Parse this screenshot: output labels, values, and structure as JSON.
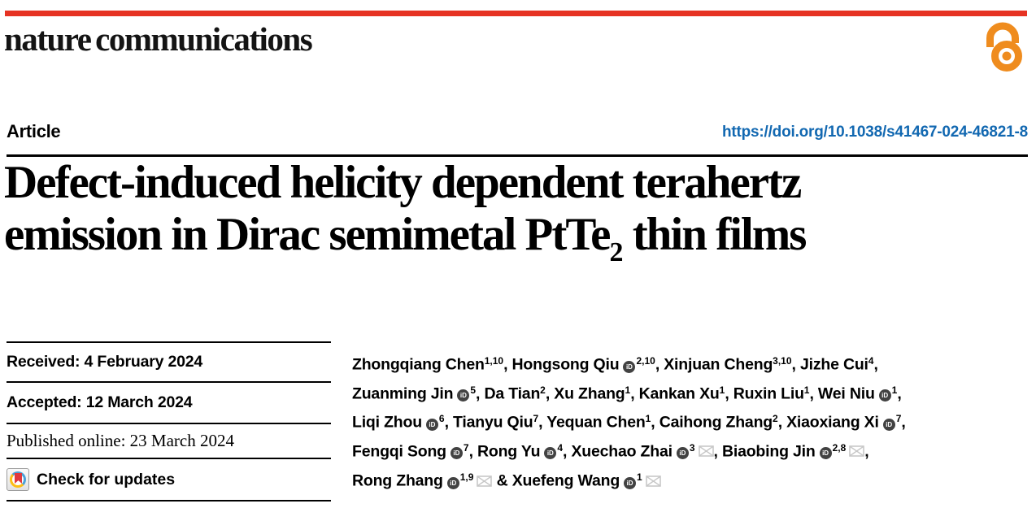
{
  "brand": {
    "wordmark": "nature communications",
    "bar_color": "#e63323",
    "open_access_color": "#ef8c1e"
  },
  "header": {
    "article_label": "Article",
    "doi_link": "https://doi.org/10.1038/s41467-024-46821-8",
    "doi_color": "#1268b1"
  },
  "title": {
    "line1": "Defect-induced helicity dependent terahertz",
    "line2_before_sub": "emission in Dirac semimetal PtTe",
    "line2_sub": "2",
    "line2_after_sub": " thin films"
  },
  "sidebar": {
    "received": "Received: 4 February 2024",
    "accepted": "Accepted: 12 March 2024",
    "published_online": "Published online: 23 March 2024",
    "check_updates_label": "Check for updates"
  },
  "authors": {
    "orcid_icon_label": "iD",
    "lines": [
      [
        {
          "name": "Zhongqiang Chen",
          "sup": "1,10",
          "sep": ", "
        },
        {
          "name": "Hongsong Qiu",
          "orcid": true,
          "sup": "2,10",
          "sep": ", "
        },
        {
          "name": "Xinjuan Cheng",
          "sup": "3,10",
          "sep": ", "
        },
        {
          "name": "Jizhe Cui",
          "sup": "4",
          "sep": ","
        }
      ],
      [
        {
          "name": "Zuanming Jin",
          "orcid": true,
          "sup": "5",
          "sep": ", "
        },
        {
          "name": "Da Tian",
          "sup": "2",
          "sep": ", "
        },
        {
          "name": "Xu Zhang",
          "sup": "1",
          "sep": ", "
        },
        {
          "name": "Kankan Xu",
          "sup": "1",
          "sep": ", "
        },
        {
          "name": "Ruxin Liu",
          "sup": "1",
          "sep": ", "
        },
        {
          "name": "Wei Niu",
          "orcid": true,
          "sup": "1",
          "sep": ","
        }
      ],
      [
        {
          "name": "Liqi Zhou",
          "orcid": true,
          "sup": "6",
          "sep": ", "
        },
        {
          "name": "Tianyu Qiu",
          "sup": "7",
          "sep": ", "
        },
        {
          "name": "Yequan Chen",
          "sup": "1",
          "sep": ", "
        },
        {
          "name": "Caihong Zhang",
          "sup": "2",
          "sep": ", "
        },
        {
          "name": "Xiaoxiang Xi",
          "orcid": true,
          "sup": "7",
          "sep": ","
        }
      ],
      [
        {
          "name": "Fengqi Song",
          "orcid": true,
          "sup": "7",
          "sep": ", "
        },
        {
          "name": "Rong Yu",
          "orcid": true,
          "sup": "4",
          "sep": ", "
        },
        {
          "name": "Xuechao Zhai",
          "orcid": true,
          "sup": "3",
          "mail": true,
          "sep": ", "
        },
        {
          "name": "Biaobing Jin",
          "orcid": true,
          "sup": "2,8",
          "mail": true,
          "sep": ","
        }
      ],
      [
        {
          "name": "Rong Zhang",
          "orcid": true,
          "sup": "1,9",
          "mail": true,
          "sep": " & "
        },
        {
          "name": "Xuefeng Wang",
          "orcid": true,
          "sup": "1",
          "mail": true,
          "sep": ""
        }
      ]
    ]
  }
}
